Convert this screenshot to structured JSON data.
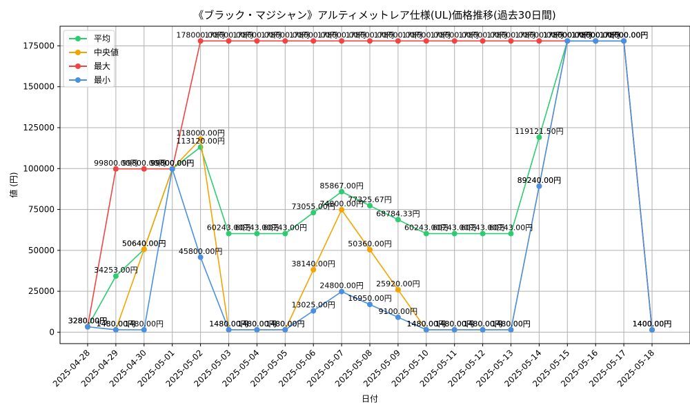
{
  "chart_data": {
    "type": "line",
    "title": "《ブラック・マジシャン》アルティメットレア仕様(UL)価格推移(過去30日間)",
    "xlabel": "日付",
    "ylabel": "値 (円)",
    "categories": [
      "2025-04-28",
      "2025-04-29",
      "2025-04-30",
      "2025-05-01",
      "2025-05-02",
      "2025-05-03",
      "2025-05-04",
      "2025-05-05",
      "2025-05-06",
      "2025-05-07",
      "2025-05-08",
      "2025-05-09",
      "2025-05-10",
      "2025-05-11",
      "2025-05-12",
      "2025-05-13",
      "2025-05-14",
      "2025-05-15",
      "2025-05-16",
      "2025-05-17",
      "2025-05-18"
    ],
    "ylim": [
      -7000,
      187000
    ],
    "yticks": [
      0,
      25000,
      50000,
      75000,
      100000,
      125000,
      150000,
      175000
    ],
    "legend_position": "upper-left",
    "grid": true,
    "series": [
      {
        "name": "平均",
        "color": "#2ecc71",
        "values": [
          3280,
          34253,
          50640,
          99800,
          113120,
          60243,
          60243,
          60243,
          73055,
          85867,
          77325.67,
          68784.33,
          60243,
          60243,
          60243,
          60243,
          119121.5,
          178000,
          178000,
          178000,
          1400
        ],
        "labels": [
          "3280.00円",
          "34253.00円",
          "50640.00円",
          "99800.00円",
          "113120.00円",
          "60243.00円",
          "60243.00円",
          "60243.00円",
          "73055.00円",
          "85867.00円",
          "77325.67円",
          "68784.33円",
          "60243.00円",
          "60243.00円",
          "60243.00円",
          "60243.00円",
          "119121.50円",
          "178000.00円",
          "178000.00円",
          "178000.00円",
          "1400.00円"
        ]
      },
      {
        "name": "中央値",
        "color": "#f5a300",
        "values": [
          3280,
          1480,
          50640,
          99800,
          118000,
          1480,
          1480,
          1480,
          38140,
          74800,
          50360,
          25920,
          1480,
          1480,
          1480,
          1480,
          89240,
          178000,
          178000,
          178000,
          1400
        ],
        "labels": [
          "3280.00円",
          "1480.00円",
          "50640.00円",
          "99800.00円",
          "118000.00円",
          "1480.00円",
          "1480.00円",
          "1480.00円",
          "38140.00円",
          "74800.00円",
          "50360.00円",
          "25920.00円",
          "1480.00円",
          "1480.00円",
          "1480.00円",
          "1480.00円",
          "89240.00円",
          "178000.00円",
          "178000.00円",
          "178000.00円",
          "1400.00円"
        ]
      },
      {
        "name": "最大",
        "color": "#ef4444",
        "values": [
          3280,
          99800,
          99800,
          99800,
          178000,
          178000,
          178000,
          178000,
          178000,
          178000,
          178000,
          178000,
          178000,
          178000,
          178000,
          178000,
          178000,
          178000,
          178000,
          178000,
          1400
        ],
        "labels": [
          "3280.00円",
          "99800.00円",
          "99800.00円",
          "99800.00円",
          "178000.00円",
          "178000.00円",
          "178000.00円",
          "178000.00円",
          "178000.00円",
          "178000.00円",
          "178000.00円",
          "178000.00円",
          "178000.00円",
          "178000.00円",
          "178000.00円",
          "178000.00円",
          "178000.00円",
          "178000.00円",
          "178000.00円",
          "178000.00円",
          "1400.00円"
        ]
      },
      {
        "name": "最小",
        "color": "#4a90e2",
        "values": [
          3280,
          1480,
          1480,
          99800,
          45800,
          1480,
          1480,
          1480,
          13025,
          24800,
          16950,
          9100,
          1480,
          1480,
          1480,
          1480,
          89240,
          178000,
          178000,
          178000,
          1400
        ],
        "labels": [
          "3280.00円",
          "1480.00円",
          "1480.00円",
          "99800.00円",
          "45800.00円",
          "1480.00円",
          "1480.00円",
          "1480.00円",
          "13025.00円",
          "24800.00円",
          "16950.00円",
          "9100.00円",
          "1480.00円",
          "1480.00円",
          "1480.00円",
          "1480.00円",
          "89240.00円",
          "178000.00円",
          "178000.00円",
          "178000.00円",
          "1400.00円"
        ]
      }
    ]
  }
}
